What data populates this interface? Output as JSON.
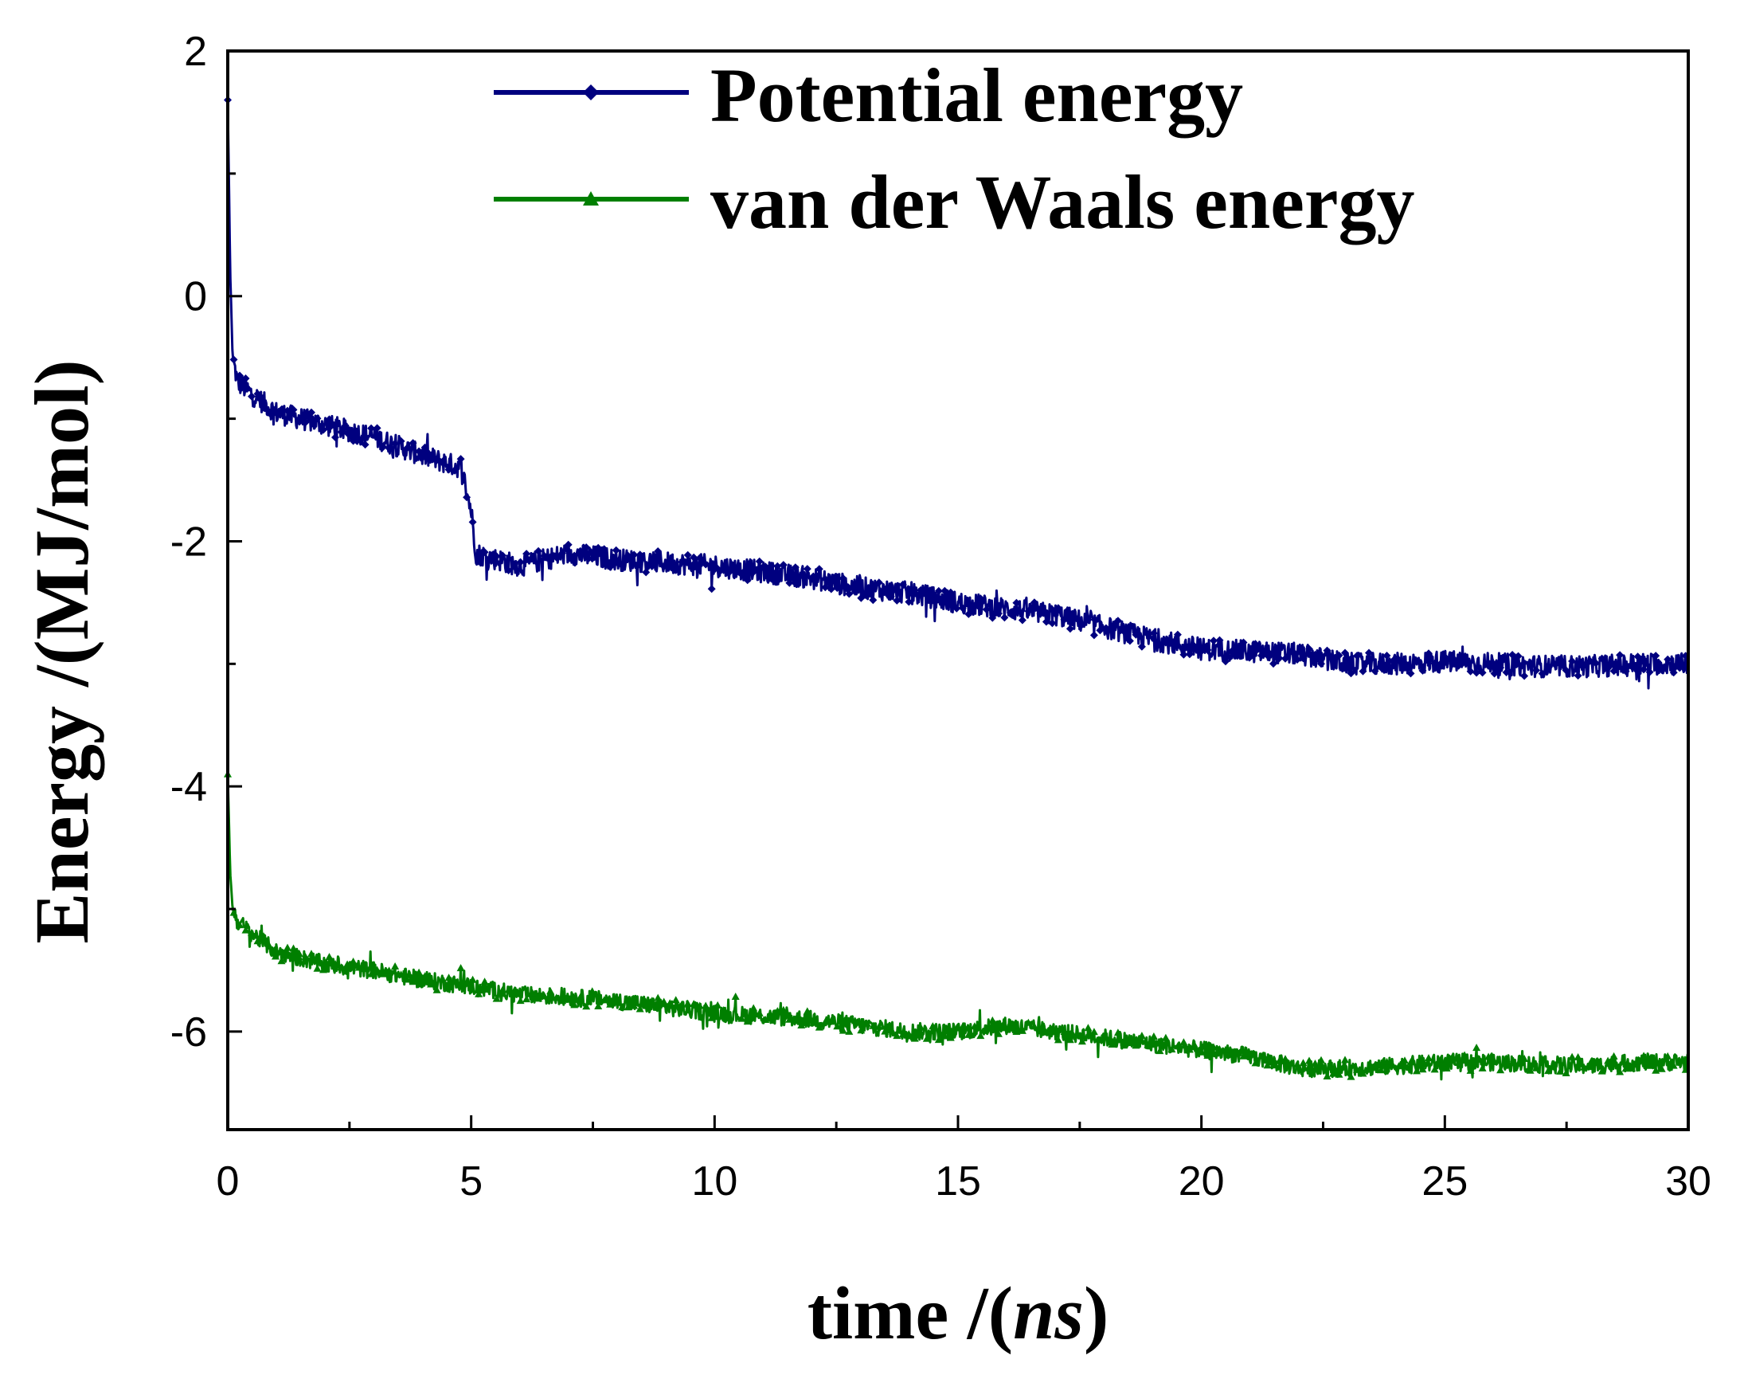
{
  "chart_data": {
    "type": "line",
    "title": "",
    "xlabel": "time /(ns)",
    "xlabel_parts": {
      "prefix": "time /(",
      "unit": "ns",
      "suffix": ")"
    },
    "ylabel": "Energy /(MJ/mol)",
    "xlim": [
      0,
      30
    ],
    "ylim": [
      -6.8,
      2
    ],
    "xticks": [
      0,
      5,
      10,
      15,
      20,
      25,
      30
    ],
    "xtick_labels": [
      "0",
      "5",
      "10",
      "15",
      "20",
      "25",
      "30"
    ],
    "yticks": [
      2,
      0,
      -2,
      -4,
      -6
    ],
    "ytick_labels": [
      "2",
      "0",
      "-2",
      "-4",
      "-6"
    ],
    "grid": false,
    "legend_position": "top-right",
    "series": [
      {
        "name": "Potential energy",
        "color": "#00007f",
        "marker": "diamond",
        "noise": 0.09,
        "x": [
          0,
          0.05,
          0.1,
          0.2,
          0.5,
          1,
          2,
          3,
          4,
          4.8,
          5.0,
          5.1,
          6,
          7,
          8,
          10,
          12,
          13,
          14,
          15,
          16,
          17,
          18,
          19,
          20,
          21,
          22,
          23,
          24,
          25,
          26,
          27,
          28,
          29,
          30
        ],
        "y": [
          1.6,
          0.2,
          -0.5,
          -0.7,
          -0.8,
          -0.95,
          -1.05,
          -1.15,
          -1.3,
          -1.4,
          -1.75,
          -2.1,
          -2.2,
          -2.1,
          -2.15,
          -2.2,
          -2.3,
          -2.38,
          -2.42,
          -2.5,
          -2.55,
          -2.6,
          -2.7,
          -2.8,
          -2.88,
          -2.9,
          -2.92,
          -3.0,
          -3.0,
          -2.98,
          -3.0,
          -3.02,
          -3.02,
          -3.0,
          -3.0
        ]
      },
      {
        "name": "van der Waals energy",
        "color": "#007f00",
        "marker": "triangle",
        "noise": 0.07,
        "x": [
          0,
          0.05,
          0.1,
          0.2,
          0.5,
          1,
          2,
          3,
          4,
          5,
          6,
          7,
          8,
          10,
          12,
          13,
          14,
          15,
          16,
          17,
          18,
          19,
          20,
          21,
          22,
          23,
          24,
          25,
          26,
          27,
          28,
          29,
          30
        ],
        "y": [
          -3.9,
          -4.7,
          -5.0,
          -5.1,
          -5.2,
          -5.35,
          -5.45,
          -5.5,
          -5.58,
          -5.63,
          -5.7,
          -5.72,
          -5.75,
          -5.85,
          -5.9,
          -5.95,
          -6.0,
          -6.0,
          -5.95,
          -6.0,
          -6.05,
          -6.1,
          -6.15,
          -6.2,
          -6.3,
          -6.3,
          -6.28,
          -6.25,
          -6.25,
          -6.27,
          -6.28,
          -6.25,
          -6.25
        ]
      }
    ]
  }
}
